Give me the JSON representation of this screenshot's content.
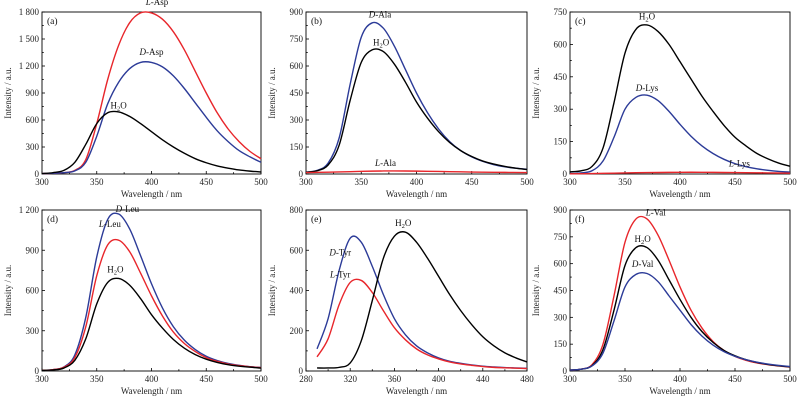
{
  "colors": {
    "H2O": "#000000",
    "L": "#e8262b",
    "D": "#2c3b98"
  },
  "common": {
    "xlabel": "Wavelength / nm",
    "ylabel": "Intensity / a.u."
  },
  "chart_data": [
    {
      "type": "line",
      "panel": "(a)",
      "xlim": [
        300,
        500
      ],
      "xticks": [
        300,
        350,
        400,
        450,
        500
      ],
      "ylim": [
        0,
        1800
      ],
      "yticks": [
        0,
        300,
        600,
        900,
        1200,
        1500,
        1800
      ],
      "ytick_labels": [
        "0",
        "300",
        "600",
        "900",
        "1 200",
        "1 500",
        "1 800"
      ],
      "series": [
        {
          "name": "L-Asp",
          "prefix": "L",
          "rest": "-Asp",
          "color": "L",
          "x": [
            300,
            310,
            320,
            330,
            340,
            350,
            360,
            370,
            380,
            390,
            400,
            410,
            420,
            430,
            440,
            450,
            460,
            470,
            480,
            490,
            500
          ],
          "y": [
            5,
            8,
            15,
            40,
            160,
            560,
            1050,
            1430,
            1680,
            1790,
            1790,
            1720,
            1580,
            1380,
            1140,
            900,
            680,
            500,
            360,
            250,
            170
          ]
        },
        {
          "name": "D-Asp",
          "prefix": "D",
          "rest": "-Asp",
          "color": "D",
          "x": [
            300,
            310,
            320,
            330,
            340,
            350,
            360,
            370,
            380,
            390,
            400,
            410,
            420,
            430,
            440,
            450,
            460,
            470,
            480,
            490,
            500
          ],
          "y": [
            5,
            8,
            15,
            35,
            130,
            420,
            780,
            1020,
            1170,
            1240,
            1240,
            1190,
            1090,
            950,
            790,
            630,
            480,
            360,
            260,
            190,
            130
          ]
        },
        {
          "name": "H2O",
          "color": "H2O",
          "x": [
            300,
            310,
            320,
            330,
            340,
            350,
            360,
            370,
            380,
            390,
            400,
            410,
            420,
            430,
            440,
            450,
            460,
            470,
            480,
            490,
            500
          ],
          "y": [
            5,
            15,
            40,
            130,
            330,
            560,
            680,
            690,
            640,
            560,
            470,
            380,
            300,
            230,
            170,
            125,
            90,
            65,
            45,
            32,
            22
          ]
        }
      ],
      "labels": [
        {
          "series": "L-Asp",
          "x": 405,
          "y": 1880
        },
        {
          "series": "D-Asp",
          "x": 400,
          "y": 1320
        },
        {
          "series": "H2O",
          "x": 370,
          "y": 730
        }
      ]
    },
    {
      "type": "line",
      "panel": "(b)",
      "xlim": [
        300,
        500
      ],
      "xticks": [
        300,
        350,
        400,
        450,
        500
      ],
      "ylim": [
        0,
        900
      ],
      "yticks": [
        0,
        150,
        300,
        450,
        600,
        750,
        900
      ],
      "ytick_labels": [
        "0",
        "150",
        "300",
        "450",
        "600",
        "750",
        "900"
      ],
      "series": [
        {
          "name": "D-Ala",
          "prefix": "D",
          "rest": "-Ala",
          "color": "D",
          "x": [
            300,
            310,
            320,
            330,
            340,
            350,
            360,
            370,
            380,
            390,
            400,
            410,
            420,
            430,
            440,
            450,
            460,
            470,
            480,
            490,
            500
          ],
          "y": [
            10,
            20,
            60,
            200,
            500,
            760,
            840,
            810,
            710,
            580,
            450,
            340,
            250,
            180,
            130,
            95,
            70,
            52,
            40,
            32,
            26
          ]
        },
        {
          "name": "H2O",
          "color": "H2O",
          "x": [
            300,
            310,
            320,
            330,
            340,
            350,
            360,
            370,
            380,
            390,
            400,
            410,
            420,
            430,
            440,
            450,
            460,
            470,
            480,
            490,
            500
          ],
          "y": [
            10,
            18,
            50,
            160,
            410,
            620,
            690,
            680,
            610,
            510,
            400,
            310,
            235,
            175,
            130,
            97,
            72,
            55,
            42,
            32,
            25
          ]
        },
        {
          "name": "L-Ala",
          "prefix": "L",
          "rest": "-Ala",
          "color": "L",
          "x": [
            300,
            320,
            340,
            360,
            380,
            400,
            420,
            440,
            460,
            480,
            500
          ],
          "y": [
            8,
            10,
            13,
            16,
            17,
            16,
            14,
            12,
            10,
            9,
            8
          ]
        }
      ],
      "labels": [
        {
          "series": "D-Ala",
          "x": 367,
          "y": 870
        },
        {
          "series": "H2O",
          "x": 368,
          "y": 715
        },
        {
          "series": "L-Ala",
          "x": 372,
          "y": 45
        }
      ]
    },
    {
      "type": "line",
      "panel": "(c)",
      "xlim": [
        300,
        500
      ],
      "xticks": [
        300,
        350,
        400,
        450,
        500
      ],
      "ylim": [
        0,
        750
      ],
      "yticks": [
        0,
        150,
        300,
        450,
        600,
        750
      ],
      "ytick_labels": [
        "0",
        "150",
        "300",
        "450",
        "600",
        "750"
      ],
      "series": [
        {
          "name": "H2O",
          "color": "H2O",
          "x": [
            300,
            310,
            320,
            330,
            340,
            350,
            360,
            370,
            380,
            390,
            400,
            410,
            420,
            430,
            440,
            450,
            460,
            470,
            480,
            490,
            500
          ],
          "y": [
            10,
            15,
            35,
            120,
            330,
            560,
            670,
            690,
            660,
            600,
            520,
            440,
            360,
            290,
            225,
            170,
            130,
            95,
            70,
            50,
            36
          ]
        },
        {
          "name": "D-Lys",
          "prefix": "D",
          "rest": "-Lys",
          "color": "D",
          "x": [
            300,
            310,
            320,
            330,
            340,
            350,
            360,
            370,
            380,
            390,
            400,
            410,
            420,
            430,
            440,
            450,
            460,
            470,
            480,
            490,
            500
          ],
          "y": [
            2,
            5,
            15,
            60,
            170,
            300,
            355,
            365,
            340,
            290,
            230,
            175,
            130,
            95,
            68,
            48,
            34,
            24,
            17,
            12,
            9
          ]
        },
        {
          "name": "L-Lys",
          "prefix": "L",
          "rest": "-Lys",
          "color": "L",
          "x": [
            300,
            320,
            340,
            360,
            380,
            400,
            420,
            440,
            460,
            480,
            500
          ],
          "y": [
            1,
            2,
            4,
            6,
            7,
            8,
            8,
            7,
            6,
            5,
            4
          ]
        }
      ],
      "labels": [
        {
          "series": "H2O",
          "x": 370,
          "y": 715
        },
        {
          "series": "D-Lys",
          "x": 370,
          "y": 385
        },
        {
          "series": "L-Lys",
          "x": 454,
          "y": 35
        }
      ]
    },
    {
      "type": "line",
      "panel": "(d)",
      "xlim": [
        300,
        500
      ],
      "xticks": [
        300,
        350,
        400,
        450,
        500
      ],
      "ylim": [
        0,
        1200
      ],
      "yticks": [
        0,
        300,
        600,
        900,
        1200
      ],
      "ytick_labels": [
        "0",
        "300",
        "600",
        "900",
        "1 200"
      ],
      "series": [
        {
          "name": "D-Leu",
          "prefix": "D",
          "rest": "-Leu",
          "color": "D",
          "x": [
            300,
            310,
            320,
            330,
            340,
            350,
            360,
            370,
            380,
            390,
            400,
            410,
            420,
            430,
            440,
            450,
            460,
            470,
            480,
            490,
            500
          ],
          "y": [
            5,
            10,
            30,
            120,
            400,
            850,
            1130,
            1170,
            1060,
            860,
            650,
            470,
            330,
            230,
            160,
            110,
            78,
            56,
            42,
            32,
            26
          ]
        },
        {
          "name": "L-Leu",
          "prefix": "L",
          "rest": "-Leu",
          "color": "L",
          "x": [
            300,
            310,
            320,
            330,
            340,
            350,
            360,
            370,
            380,
            390,
            400,
            410,
            420,
            430,
            440,
            450,
            460,
            470,
            480,
            490,
            500
          ],
          "y": [
            5,
            10,
            28,
            100,
            330,
            710,
            940,
            975,
            890,
            730,
            560,
            410,
            290,
            205,
            145,
            100,
            72,
            52,
            40,
            31,
            25
          ]
        },
        {
          "name": "H2O",
          "color": "H2O",
          "x": [
            300,
            310,
            320,
            330,
            340,
            350,
            360,
            370,
            380,
            390,
            400,
            410,
            420,
            430,
            440,
            450,
            460,
            470,
            480,
            490,
            500
          ],
          "y": [
            5,
            8,
            22,
            80,
            240,
            500,
            660,
            690,
            640,
            540,
            420,
            320,
            235,
            170,
            122,
            88,
            64,
            47,
            36,
            28,
            22
          ]
        }
      ],
      "labels": [
        {
          "series": "D-Leu",
          "x": 378,
          "y": 1185
        },
        {
          "series": "L-Leu",
          "x": 362,
          "y": 1075
        },
        {
          "series": "H2O",
          "x": 367,
          "y": 735
        }
      ]
    },
    {
      "type": "line",
      "panel": "(e)",
      "xlim": [
        280,
        480
      ],
      "xticks": [
        280,
        320,
        360,
        400,
        440,
        480
      ],
      "ylim": [
        0,
        800
      ],
      "yticks": [
        0,
        200,
        400,
        600,
        800
      ],
      "ytick_labels": [
        "0",
        "200",
        "400",
        "600",
        "800"
      ],
      "series": [
        {
          "name": "D-Tyr",
          "prefix": "D",
          "rest": "-Tyr",
          "color": "D",
          "x": [
            290,
            300,
            310,
            320,
            330,
            340,
            350,
            360,
            370,
            380,
            390,
            400,
            410,
            420,
            430,
            440,
            450,
            460,
            470,
            480
          ],
          "y": [
            110,
            260,
            500,
            660,
            640,
            520,
            380,
            260,
            180,
            125,
            90,
            65,
            48,
            38,
            30,
            24,
            20,
            17,
            15,
            13
          ]
        },
        {
          "name": "L-Tyr",
          "prefix": "L",
          "rest": "-Tyr",
          "color": "L",
          "x": [
            290,
            300,
            310,
            320,
            330,
            340,
            350,
            360,
            370,
            380,
            390,
            400,
            410,
            420,
            430,
            440,
            450,
            460,
            470,
            480
          ],
          "y": [
            70,
            160,
            330,
            440,
            450,
            390,
            300,
            215,
            155,
            110,
            80,
            60,
            45,
            35,
            28,
            22,
            18,
            16,
            14,
            12
          ]
        },
        {
          "name": "H2O",
          "color": "H2O",
          "x": [
            290,
            300,
            310,
            320,
            330,
            340,
            350,
            360,
            370,
            380,
            390,
            400,
            410,
            420,
            430,
            440,
            450,
            460,
            470,
            480
          ],
          "y": [
            15,
            15,
            18,
            40,
            150,
            350,
            560,
            670,
            690,
            640,
            560,
            470,
            380,
            300,
            230,
            170,
            125,
            90,
            65,
            45
          ]
        }
      ],
      "labels": [
        {
          "series": "D-Tyr",
          "x": 311,
          "y": 575
        },
        {
          "series": "L-Tyr",
          "x": 311,
          "y": 465
        },
        {
          "series": "H2O",
          "x": 368,
          "y": 720
        }
      ]
    },
    {
      "type": "line",
      "panel": "(f)",
      "xlim": [
        300,
        500
      ],
      "xticks": [
        300,
        350,
        400,
        450,
        500
      ],
      "ylim": [
        0,
        900
      ],
      "yticks": [
        0,
        150,
        300,
        450,
        600,
        750,
        900
      ],
      "ytick_labels": [
        "0",
        "150",
        "300",
        "450",
        "600",
        "750",
        "900"
      ],
      "series": [
        {
          "name": "L-Val",
          "prefix": "L",
          "rest": "-Val",
          "color": "L",
          "x": [
            300,
            310,
            320,
            330,
            340,
            350,
            360,
            370,
            380,
            390,
            400,
            410,
            420,
            430,
            440,
            450,
            460,
            470,
            480,
            490,
            500
          ],
          "y": [
            5,
            10,
            35,
            150,
            420,
            720,
            850,
            850,
            760,
            620,
            470,
            340,
            240,
            165,
            115,
            82,
            60,
            45,
            35,
            28,
            22
          ]
        },
        {
          "name": "H2O",
          "color": "H2O",
          "x": [
            300,
            310,
            320,
            330,
            340,
            350,
            360,
            370,
            380,
            390,
            400,
            410,
            420,
            430,
            440,
            450,
            460,
            470,
            480,
            490,
            500
          ],
          "y": [
            5,
            10,
            30,
            120,
            340,
            590,
            690,
            690,
            620,
            510,
            400,
            300,
            220,
            160,
            115,
            85,
            63,
            48,
            37,
            29,
            23
          ]
        },
        {
          "name": "D-Val",
          "prefix": "D",
          "rest": "-Val",
          "color": "D",
          "x": [
            300,
            310,
            320,
            330,
            340,
            350,
            360,
            370,
            380,
            390,
            400,
            410,
            420,
            430,
            440,
            450,
            460,
            470,
            480,
            490,
            500
          ],
          "y": [
            5,
            10,
            28,
            100,
            280,
            470,
            540,
            545,
            500,
            420,
            340,
            260,
            195,
            145,
            108,
            82,
            63,
            49,
            39,
            31,
            25
          ]
        }
      ],
      "labels": [
        {
          "series": "L-Val",
          "x": 378,
          "y": 870
        },
        {
          "series": "H2O",
          "x": 366,
          "y": 720
        },
        {
          "series": "D-Val",
          "x": 366,
          "y": 580
        }
      ]
    }
  ]
}
